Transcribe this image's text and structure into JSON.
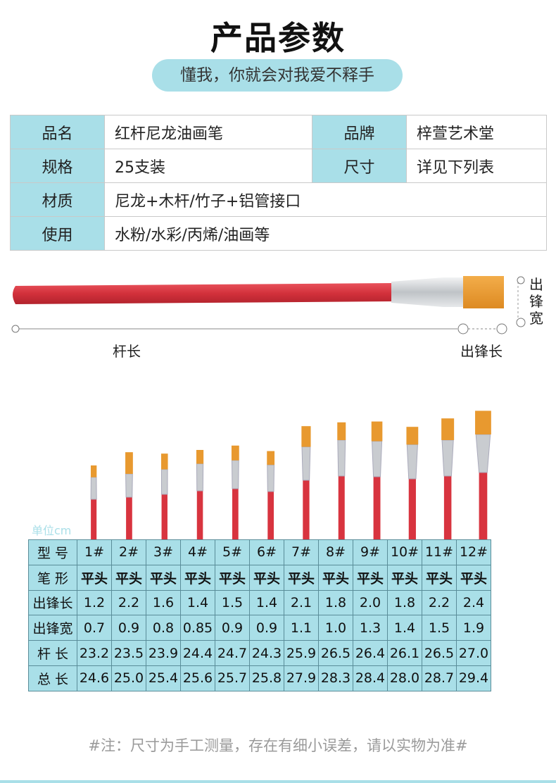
{
  "title": "产品参数",
  "subtitle": "懂我，你就会对我爱不释手",
  "spec": {
    "name_label": "品名",
    "name_value": "红杆尼龙油画笔",
    "brand_label": "品牌",
    "brand_value": "梓萱艺术堂",
    "spec_label": "规格",
    "spec_value": "25支装",
    "size_label": "尺寸",
    "size_value": "详见下列表",
    "material_label": "材质",
    "material_value": "尼龙+木杆/竹子+铝管接口",
    "use_label": "使用",
    "use_value": "水粉/水彩/丙烯/油画等"
  },
  "diagram": {
    "handle_length_label": "杆长",
    "bristle_length_label": "出锋长",
    "bristle_width_label": "出锋宽"
  },
  "unit_label": "单位cm",
  "size_table": {
    "rows": [
      {
        "label": "型  号",
        "values": [
          "1#",
          "2#",
          "3#",
          "4#",
          "5#",
          "6#",
          "7#",
          "8#",
          "9#",
          "10#",
          "11#",
          "12#"
        ]
      },
      {
        "label": "笔  形",
        "values": [
          "平头",
          "平头",
          "平头",
          "平头",
          "平头",
          "平头",
          "平头",
          "平头",
          "平头",
          "平头",
          "平头",
          "平头"
        ]
      },
      {
        "label": "出锋长",
        "values": [
          "1.2",
          "2.2",
          "1.6",
          "1.4",
          "1.5",
          "1.4",
          "2.1",
          "1.8",
          "2.0",
          "1.8",
          "2.2",
          "2.4"
        ]
      },
      {
        "label": "出锋宽",
        "values": [
          "0.7",
          "0.9",
          "0.8",
          "0.85",
          "0.9",
          "0.9",
          "1.1",
          "1.0",
          "1.3",
          "1.4",
          "1.5",
          "1.9"
        ]
      },
      {
        "label": "杆  长",
        "values": [
          "23.2",
          "23.5",
          "23.9",
          "24.4",
          "24.7",
          "24.3",
          "25.9",
          "26.5",
          "26.4",
          "26.1",
          "26.5",
          "27.0"
        ]
      },
      {
        "label": "总  长",
        "values": [
          "24.6",
          "25.0",
          "25.4",
          "25.6",
          "25.7",
          "25.8",
          "27.9",
          "28.3",
          "28.4",
          "28.0",
          "28.7",
          "29.4"
        ]
      }
    ]
  },
  "note": "#注：尺寸为手工测量，存在有细小误差，请以实物为准#",
  "colors": {
    "accent": "#a9dfe8",
    "handle_red": "#d8343f",
    "bristle": "#e8992f",
    "ferrule": "#c9ccd0"
  }
}
